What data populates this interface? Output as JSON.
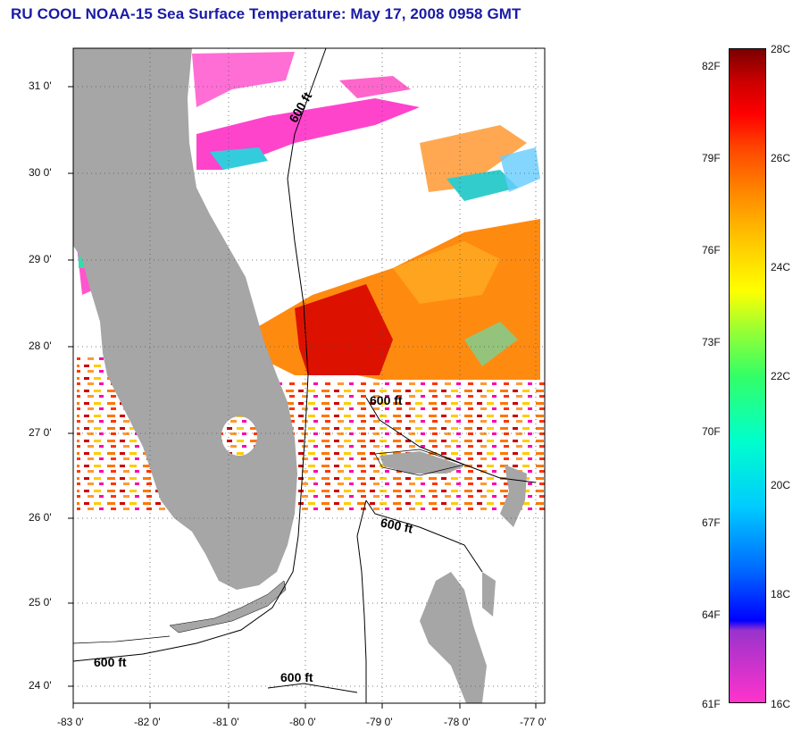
{
  "title": "RU COOL  NOAA-15  Sea Surface Temperature:  May 17, 2008 0958 GMT",
  "axes": {
    "latitude_ticks": [
      "31 0'",
      "30 0'",
      "29 0'",
      "28 0'",
      "27 0'",
      "26 0'",
      "25 0'",
      "24 0'"
    ],
    "longitude_ticks": [
      "-83 0'",
      "-82 0'",
      "-81 0'",
      "-80 0'",
      "-79 0'",
      "-78 0'",
      "-77 0'"
    ]
  },
  "colorbar": {
    "fahrenheit_labels": [
      "82F",
      "79F",
      "76F",
      "73F",
      "70F",
      "67F",
      "64F",
      "61F"
    ],
    "celsius_labels": [
      "28C",
      "26C",
      "24C",
      "22C",
      "20C",
      "18C",
      "16C"
    ]
  },
  "contour_labels": [
    "600 ft",
    "600 ft",
    "600 ft",
    "600 ft",
    "600 ft"
  ],
  "colors": {
    "title": "#1a1aa6",
    "land": "#a6a6a6",
    "cloud": "#ffffff",
    "warm_core": "#dd1100",
    "warm": "#ff8800"
  }
}
